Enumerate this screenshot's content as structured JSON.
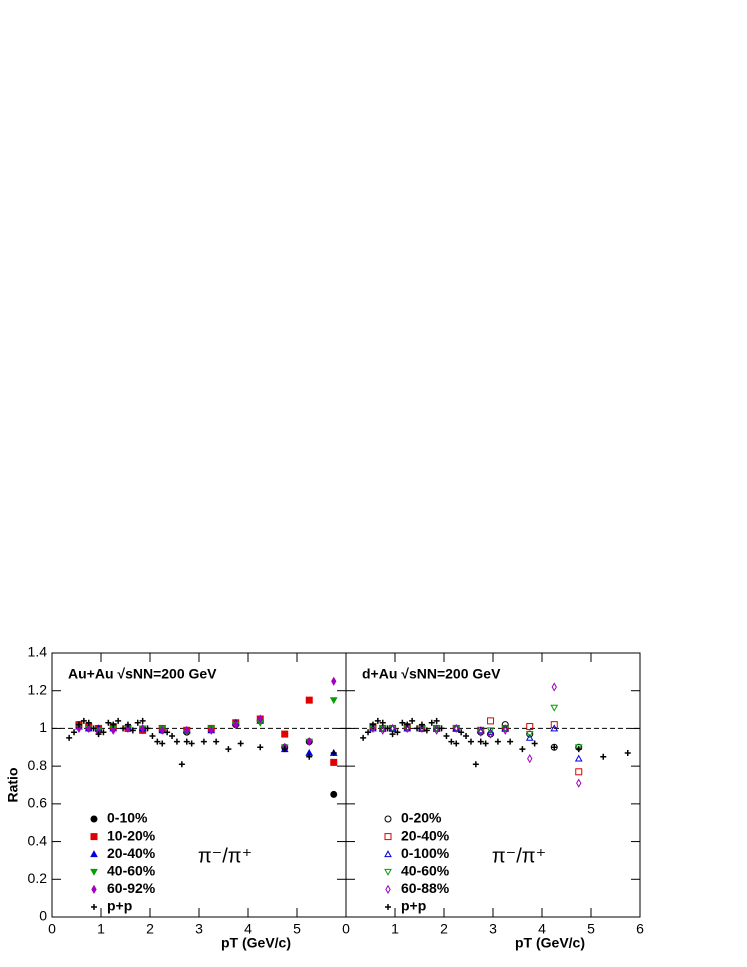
{
  "chart_data": [
    {
      "type": "scatter",
      "title": "Au+Au √sNN=200 GeV",
      "annotation": "π⁻/π⁺",
      "ylabel": "Ratio",
      "xlabel": "pT (GeV/c)",
      "xlim": [
        0,
        6
      ],
      "xticks": [
        0,
        1,
        2,
        3,
        4,
        5
      ],
      "ylim": [
        0,
        1.4
      ],
      "yticks": [
        0,
        0.2,
        0.4,
        0.6,
        0.8,
        1,
        1.2,
        1.4
      ],
      "hline": 1,
      "filled": true,
      "series": [
        {
          "name": "0-10%",
          "color": "#000000",
          "marker": "circle",
          "x": [
            0.55,
            0.75,
            0.95,
            1.25,
            1.55,
            1.85,
            2.25,
            2.75,
            3.25,
            3.75,
            4.25,
            4.75,
            5.25,
            5.75
          ],
          "values": [
            1.02,
            1.0,
            0.99,
            1.0,
            1.0,
            0.99,
            0.99,
            0.98,
            1.0,
            1.02,
            1.04,
            0.9,
            0.93,
            0.65
          ]
        },
        {
          "name": "10-20%",
          "color": "#e00000",
          "marker": "square",
          "x": [
            0.55,
            0.75,
            0.95,
            1.25,
            1.55,
            1.85,
            2.25,
            2.75,
            3.25,
            3.75,
            4.25,
            4.75,
            5.25,
            5.75
          ],
          "values": [
            1.02,
            1.01,
            1.0,
            1.01,
            1.0,
            0.99,
            1.0,
            0.99,
            1.0,
            1.03,
            1.05,
            0.97,
            1.15,
            0.82
          ]
        },
        {
          "name": "20-40%",
          "color": "#0000e0",
          "marker": "triangle",
          "x": [
            0.55,
            0.75,
            0.95,
            1.25,
            1.55,
            1.85,
            2.25,
            2.75,
            3.25,
            3.75,
            4.25,
            4.75,
            5.25,
            5.75
          ],
          "values": [
            1.01,
            1.0,
            1.0,
            1.0,
            1.01,
            1.0,
            0.99,
            0.99,
            0.99,
            1.03,
            1.04,
            0.89,
            0.87,
            0.87
          ]
        },
        {
          "name": "40-60%",
          "color": "#00a000",
          "marker": "triangle-down",
          "x": [
            0.55,
            0.75,
            0.95,
            1.25,
            1.55,
            1.85,
            2.25,
            2.75,
            3.25,
            3.75,
            4.25,
            4.75,
            5.25,
            5.75
          ],
          "values": [
            1.01,
            1.0,
            0.99,
            1.0,
            1.0,
            1.0,
            1.0,
            0.98,
            1.0,
            1.02,
            1.03,
            0.9,
            0.93,
            1.15
          ]
        },
        {
          "name": "60-92%",
          "color": "#a000c0",
          "marker": "diamond",
          "x": [
            0.55,
            0.75,
            0.95,
            1.25,
            1.55,
            1.85,
            2.25,
            2.75,
            3.25,
            3.75,
            4.25,
            4.75,
            5.25,
            5.75
          ],
          "values": [
            1.0,
            1.0,
            0.98,
            0.99,
            1.0,
            1.0,
            0.99,
            0.99,
            0.99,
            1.02,
            1.05,
            0.9,
            0.93,
            1.25
          ]
        },
        {
          "name": "p+p",
          "color": "#000000",
          "marker": "cross",
          "x": [
            0.35,
            0.45,
            0.55,
            0.65,
            0.75,
            0.85,
            0.95,
            1.05,
            1.15,
            1.25,
            1.35,
            1.45,
            1.55,
            1.65,
            1.75,
            1.85,
            1.95,
            2.05,
            2.15,
            2.25,
            2.35,
            2.45,
            2.55,
            2.65,
            2.75,
            2.85,
            3.1,
            3.35,
            3.6,
            3.85,
            4.25,
            4.75,
            5.25,
            5.75
          ],
          "values": [
            0.95,
            0.98,
            1.02,
            1.04,
            1.03,
            1.0,
            0.97,
            0.98,
            1.03,
            1.02,
            1.04,
            1.0,
            1.02,
            0.99,
            1.03,
            1.04,
            1.0,
            0.96,
            0.93,
            0.92,
            0.98,
            0.96,
            0.93,
            0.81,
            0.93,
            0.92,
            0.93,
            0.93,
            0.89,
            0.92,
            0.9,
            0.89,
            0.85,
            0.87
          ]
        }
      ]
    },
    {
      "type": "scatter",
      "title": "d+Au √sNN=200 GeV",
      "annotation": "π⁻/π⁺",
      "xlabel": "pT (GeV/c)",
      "xlim": [
        0,
        6
      ],
      "xticks": [
        0,
        1,
        2,
        3,
        4,
        5,
        6
      ],
      "ylim": [
        0,
        1.4
      ],
      "yticks": [
        0,
        0.2,
        0.4,
        0.6,
        0.8,
        1,
        1.2,
        1.4
      ],
      "hline": 1,
      "filled": false,
      "series": [
        {
          "name": "0-20%",
          "color": "#000000",
          "marker": "circle",
          "x": [
            0.55,
            0.75,
            0.95,
            1.25,
            1.55,
            1.85,
            2.25,
            2.75,
            2.95,
            3.25,
            3.75,
            4.25,
            4.75
          ],
          "values": [
            1.01,
            1.0,
            1.0,
            1.0,
            1.0,
            1.0,
            1.0,
            0.98,
            0.97,
            1.02,
            0.97,
            0.9,
            0.9
          ]
        },
        {
          "name": "20-40%",
          "color": "#e00000",
          "marker": "square",
          "x": [
            0.55,
            0.75,
            0.95,
            1.25,
            1.55,
            1.85,
            2.25,
            2.75,
            2.95,
            3.25,
            3.75,
            4.25,
            4.75
          ],
          "values": [
            1.01,
            1.0,
            1.0,
            1.01,
            1.0,
            1.0,
            1.0,
            0.99,
            1.04,
            1.0,
            1.01,
            1.02,
            0.77
          ]
        },
        {
          "name": "0-100%",
          "color": "#0000e0",
          "marker": "triangle",
          "x": [
            0.55,
            0.75,
            0.95,
            1.25,
            1.55,
            1.85,
            2.25,
            2.75,
            2.95,
            3.25,
            3.75,
            4.25,
            4.75
          ],
          "values": [
            1.0,
            1.0,
            1.0,
            1.0,
            1.0,
            1.0,
            1.0,
            0.99,
            0.98,
            1.0,
            0.95,
            1.0,
            0.84
          ]
        },
        {
          "name": "40-60%",
          "color": "#00a000",
          "marker": "triangle-down",
          "x": [
            0.55,
            0.75,
            0.95,
            1.25,
            1.55,
            1.85,
            2.25,
            2.75,
            2.95,
            3.25,
            3.75,
            4.25,
            4.75
          ],
          "values": [
            1.0,
            1.0,
            1.0,
            1.0,
            1.0,
            1.0,
            1.0,
            0.98,
            0.99,
            1.0,
            0.97,
            1.11,
            0.9
          ]
        },
        {
          "name": "60-88%",
          "color": "#a000c0",
          "marker": "diamond",
          "x": [
            0.55,
            0.75,
            0.95,
            1.25,
            1.55,
            1.85,
            2.25,
            2.75,
            2.95,
            3.25,
            3.75,
            4.25,
            4.75
          ],
          "values": [
            1.0,
            0.99,
            1.0,
            1.0,
            1.0,
            0.99,
            1.0,
            0.98,
            0.97,
            0.99,
            0.84,
            1.22,
            0.71
          ]
        },
        {
          "name": "p+p",
          "color": "#000000",
          "marker": "cross",
          "x": [
            0.35,
            0.45,
            0.55,
            0.65,
            0.75,
            0.85,
            0.95,
            1.05,
            1.15,
            1.25,
            1.35,
            1.45,
            1.55,
            1.65,
            1.75,
            1.85,
            1.95,
            2.05,
            2.15,
            2.25,
            2.35,
            2.45,
            2.55,
            2.65,
            2.75,
            2.85,
            3.1,
            3.35,
            3.6,
            3.85,
            4.25,
            4.75,
            5.25,
            5.75
          ],
          "values": [
            0.95,
            0.98,
            1.02,
            1.04,
            1.03,
            1.0,
            0.97,
            0.98,
            1.03,
            1.02,
            1.04,
            1.0,
            1.02,
            0.99,
            1.03,
            1.04,
            1.0,
            0.96,
            0.93,
            0.92,
            0.98,
            0.96,
            0.93,
            0.81,
            0.93,
            0.92,
            0.93,
            0.93,
            0.89,
            0.92,
            0.9,
            0.89,
            0.85,
            0.87
          ]
        }
      ]
    }
  ]
}
